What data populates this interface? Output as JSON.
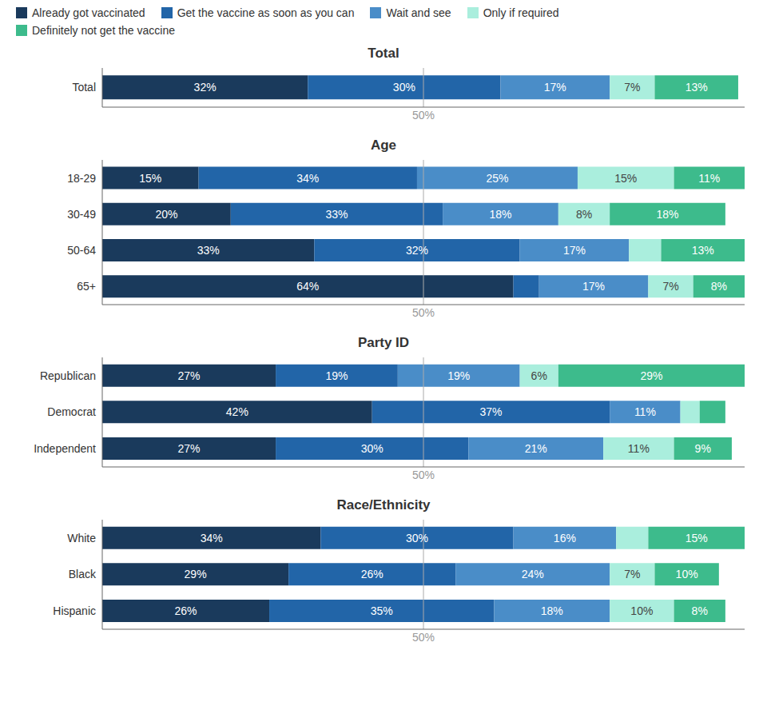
{
  "chart_data": [
    {
      "type": "bar",
      "title": "Total",
      "categories": [
        "Total"
      ],
      "series": [
        {
          "name": "Already got vaccinated",
          "color": "#1a3a5c",
          "values": [
            32
          ],
          "value_labels": [
            "32%"
          ]
        },
        {
          "name": "Get the vaccine as soon as you can",
          "color": "#2265a8",
          "values": [
            30
          ],
          "value_labels": [
            "30%"
          ]
        },
        {
          "name": "Wait and see",
          "color": "#4a8dc8",
          "values": [
            17
          ],
          "value_labels": [
            "17%"
          ]
        },
        {
          "name": "Only if required",
          "color": "#aaeedd",
          "values": [
            7
          ],
          "value_labels": [
            "7%"
          ]
        },
        {
          "name": "Definitely not get the vaccine",
          "color": "#3dbb8c",
          "values": [
            13
          ],
          "value_labels": [
            "13%"
          ]
        }
      ],
      "orientation": "horizontal",
      "stacked": true,
      "data_labels": true,
      "xlim": [
        0,
        100
      ],
      "tick_labels": "y",
      "annotations": [
        {
          "x": 50,
          "text": "50%"
        }
      ],
      "legend": "top"
    },
    {
      "type": "bar",
      "title": "Age",
      "categories": [
        "18-29",
        "30-49",
        "50-64",
        "65+"
      ],
      "series": [
        {
          "name": "Already got vaccinated",
          "color": "#1a3a5c",
          "values": [
            15,
            20,
            33,
            64
          ],
          "value_labels": [
            "15%",
            "20%",
            "33%",
            "64%"
          ]
        },
        {
          "name": "Get the vaccine as soon as you can",
          "color": "#2265a8",
          "values": [
            34,
            33,
            32,
            4
          ],
          "value_labels": [
            "34%",
            "33%",
            "32%",
            null
          ]
        },
        {
          "name": "Wait and see",
          "color": "#4a8dc8",
          "values": [
            25,
            18,
            17,
            17
          ],
          "value_labels": [
            "25%",
            "18%",
            "17%",
            "17%"
          ]
        },
        {
          "name": "Only if required",
          "color": "#aaeedd",
          "values": [
            15,
            8,
            5,
            7
          ],
          "value_labels": [
            "15%",
            "8%",
            null,
            "7%"
          ]
        },
        {
          "name": "Definitely not get the vaccine",
          "color": "#3dbb8c",
          "values": [
            11,
            18,
            13,
            8
          ],
          "value_labels": [
            "11%",
            "18%",
            "13%",
            "8%"
          ]
        }
      ],
      "orientation": "horizontal",
      "stacked": true,
      "data_labels": true,
      "xlim": [
        0,
        100
      ],
      "tick_labels": "y",
      "annotations": [
        {
          "x": 50,
          "text": "50%"
        }
      ]
    },
    {
      "type": "bar",
      "title": "Party ID",
      "categories": [
        "Republican",
        "Democrat",
        "Independent"
      ],
      "series": [
        {
          "name": "Already got vaccinated",
          "color": "#1a3a5c",
          "values": [
            27,
            42,
            27
          ],
          "value_labels": [
            "27%",
            "42%",
            "27%"
          ]
        },
        {
          "name": "Get the vaccine as soon as you can",
          "color": "#2265a8",
          "values": [
            19,
            37,
            30
          ],
          "value_labels": [
            "19%",
            "37%",
            "30%"
          ]
        },
        {
          "name": "Wait and see",
          "color": "#4a8dc8",
          "values": [
            19,
            11,
            21
          ],
          "value_labels": [
            "19%",
            "11%",
            "21%"
          ]
        },
        {
          "name": "Only if required",
          "color": "#aaeedd",
          "values": [
            6,
            3,
            11
          ],
          "value_labels": [
            "6%",
            null,
            "11%"
          ]
        },
        {
          "name": "Definitely not get the vaccine",
          "color": "#3dbb8c",
          "values": [
            29,
            4,
            9
          ],
          "value_labels": [
            "29%",
            null,
            "9%"
          ]
        }
      ],
      "orientation": "horizontal",
      "stacked": true,
      "data_labels": true,
      "xlim": [
        0,
        100
      ],
      "tick_labels": "y",
      "annotations": [
        {
          "x": 50,
          "text": "50%"
        }
      ]
    },
    {
      "type": "bar",
      "title": "Race/Ethnicity",
      "categories": [
        "White",
        "Black",
        "Hispanic"
      ],
      "series": [
        {
          "name": "Already got vaccinated",
          "color": "#1a3a5c",
          "values": [
            34,
            29,
            26
          ],
          "value_labels": [
            "34%",
            "29%",
            "26%"
          ]
        },
        {
          "name": "Get the vaccine as soon as you can",
          "color": "#2265a8",
          "values": [
            30,
            26,
            35
          ],
          "value_labels": [
            "30%",
            "26%",
            "35%"
          ]
        },
        {
          "name": "Wait and see",
          "color": "#4a8dc8",
          "values": [
            16,
            24,
            18
          ],
          "value_labels": [
            "16%",
            "24%",
            "18%"
          ]
        },
        {
          "name": "Only if required",
          "color": "#aaeedd",
          "values": [
            5,
            7,
            10
          ],
          "value_labels": [
            null,
            "7%",
            "10%"
          ]
        },
        {
          "name": "Definitely not get the vaccine",
          "color": "#3dbb8c",
          "values": [
            15,
            10,
            8
          ],
          "value_labels": [
            "15%",
            "10%",
            "8%"
          ]
        }
      ],
      "orientation": "horizontal",
      "stacked": true,
      "data_labels": true,
      "xlim": [
        0,
        100
      ],
      "tick_labels": "y",
      "annotations": [
        {
          "x": 50,
          "text": "50%"
        }
      ]
    }
  ]
}
